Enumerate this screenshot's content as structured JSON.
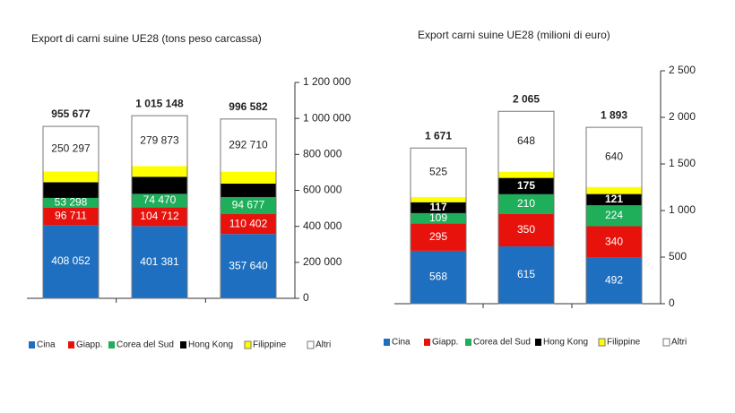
{
  "chart_data": [
    {
      "type": "bar",
      "stacked": true,
      "title": "Export di carni suine UE28 (tons peso carcassa)",
      "categories": [
        null,
        null,
        null
      ],
      "series": [
        {
          "name": "Cina",
          "color": "#1f6fc0",
          "values": [
            408052,
            401381,
            357640
          ],
          "value_labels": [
            "408 052",
            "401 381",
            "357 640"
          ]
        },
        {
          "name": "Giapp.",
          "color": "#e8120c",
          "values": [
            96711,
            104712,
            110402
          ],
          "value_labels": [
            "96 711",
            "104 712",
            "110 402"
          ]
        },
        {
          "name": "Corea del Sud",
          "color": "#1fae5a",
          "values": [
            53298,
            74470,
            94677
          ],
          "value_labels": [
            "53 298",
            "74 470",
            "94 677"
          ]
        },
        {
          "name": "Hong Kong",
          "color": "#000000",
          "values": [
            87000,
            95000,
            75000
          ]
        },
        {
          "name": "Filippine",
          "color": "#ffff00",
          "values": [
            60319,
            59712,
            66153
          ]
        },
        {
          "name": "Altri",
          "color": "#ffffff",
          "values": [
            250297,
            279873,
            292710
          ],
          "value_labels": [
            "250 297",
            "279 873",
            "292 710"
          ]
        }
      ],
      "totals": [
        955677,
        1015148,
        996582
      ],
      "total_labels": [
        "955 677",
        "1 015 148",
        "996 582"
      ],
      "ylim": [
        0,
        1200000
      ],
      "yticks": [
        0,
        {
          "value": 200000,
          "label": "200 000"
        },
        {
          "value": 400000,
          "label": "400 000"
        },
        {
          "value": 600000,
          "label": "600 000"
        },
        {
          "value": 800000,
          "label": "800 000"
        },
        {
          "value": 1000000,
          "label": "1 000 000"
        },
        {
          "value": 1200000,
          "label": "1 200 000"
        }
      ]
    },
    {
      "type": "bar",
      "stacked": true,
      "title": "Export carni suine UE28 (milioni di euro)",
      "categories": [
        null,
        null,
        null
      ],
      "series": [
        {
          "name": "Cina",
          "color": "#1f6fc0",
          "values": [
            568,
            615,
            492
          ]
        },
        {
          "name": "Giapp.",
          "color": "#e8120c",
          "values": [
            295,
            350,
            340
          ]
        },
        {
          "name": "Corea del Sud",
          "color": "#1fae5a",
          "values": [
            109,
            210,
            224
          ]
        },
        {
          "name": "Hong Kong",
          "color": "#000000",
          "values": [
            117,
            175,
            121
          ]
        },
        {
          "name": "Filippine",
          "color": "#ffff00",
          "values": [
            57,
            67,
            76
          ],
          "hide_labels": true
        },
        {
          "name": "Altri",
          "color": "#ffffff",
          "values": [
            525,
            648,
            640
          ]
        }
      ],
      "totals": [
        1671,
        2065,
        1893
      ],
      "total_labels": [
        "1 671",
        "2 065",
        "1 893"
      ],
      "ylim": [
        0,
        2500
      ],
      "yticks": [
        0,
        500,
        {
          "value": 1000,
          "label": "1 000"
        },
        {
          "value": 1500,
          "label": "1 500"
        },
        {
          "value": 2000,
          "label": "2 000"
        },
        {
          "value": 2500,
          "label": "2 500"
        }
      ]
    }
  ]
}
